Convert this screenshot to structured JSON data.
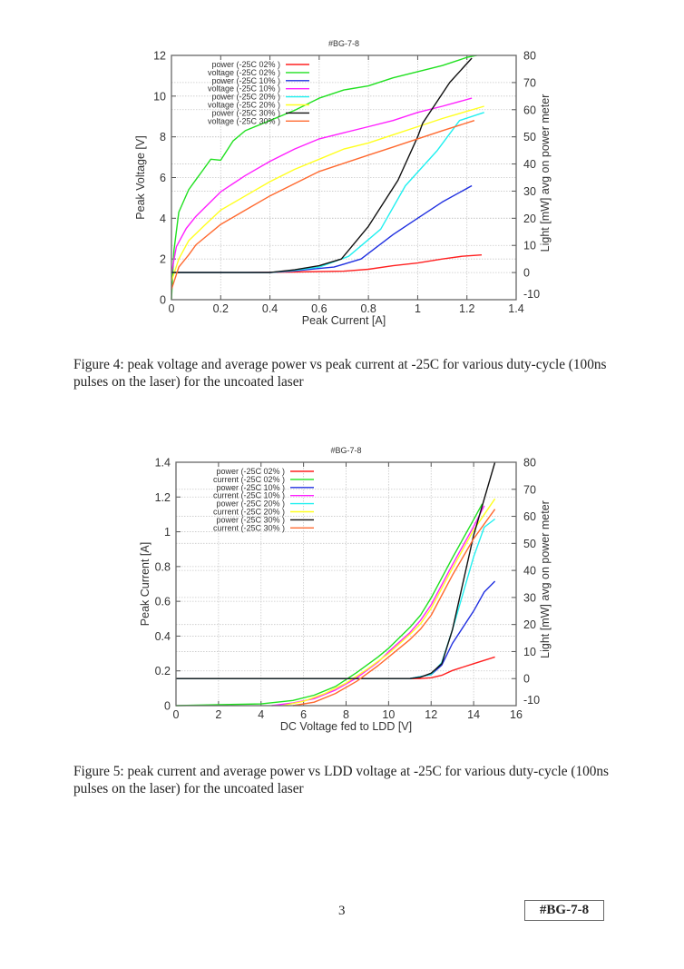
{
  "figures": [
    {
      "caption": "Figure 4: peak voltage and average power vs peak current at -25C for various duty-cycle (100ns pulses on the laser) for the uncoated laser"
    },
    {
      "caption": "Figure 5: peak current and average power vs LDD voltage at -25C for various duty-cycle (100ns pulses on the laser) for the uncoated laser"
    }
  ],
  "footer": {
    "page_number": "3",
    "tag": "#BG-7-8"
  },
  "chart_data": [
    {
      "type": "line",
      "title": "#BG-7-8",
      "xlabel": "Peak Current [A]",
      "ylabel": "Peak Voltage [V]",
      "y2label": "Light [mW] avg on power meter",
      "xlim": [
        0,
        1.4
      ],
      "ylim": [
        0,
        12
      ],
      "y2lim": [
        -10,
        80
      ],
      "xticks": [
        "0",
        "0.2",
        "0.4",
        "0.6",
        "0.8",
        "1",
        "1.2",
        "1.4"
      ],
      "xtick_values": [
        0,
        0.2,
        0.4,
        0.6,
        0.8,
        1,
        1.2,
        1.4
      ],
      "yticks": [
        "0",
        "2",
        "4",
        "6",
        "8",
        "10",
        "12"
      ],
      "ytick_values": [
        0,
        2,
        4,
        6,
        8,
        10,
        12
      ],
      "y2ticks": [
        "-10",
        "0",
        "10",
        "20",
        "30",
        "40",
        "50",
        "60",
        "70",
        "80"
      ],
      "y2tick_values": [
        -10,
        0,
        10,
        20,
        30,
        40,
        50,
        60,
        70,
        80
      ],
      "grid": true,
      "legend_position": "top-left",
      "series": [
        {
          "name": "power (-25C 02% )",
          "axis": "y2",
          "color": "#ff2020",
          "x": [
            0,
            0.3,
            0.5,
            0.7,
            0.8,
            0.9,
            1.0,
            1.1,
            1.18,
            1.26
          ],
          "y": [
            0,
            0,
            0.2,
            0.5,
            1.2,
            2.5,
            3.5,
            5,
            6,
            6.5
          ]
        },
        {
          "name": "voltage (-25C 02% )",
          "axis": "y",
          "color": "#20e020",
          "x": [
            0,
            0.01,
            0.03,
            0.07,
            0.1,
            0.13,
            0.16,
            0.2,
            0.25,
            0.3,
            0.4,
            0.5,
            0.6,
            0.7,
            0.8,
            0.9,
            1.0,
            1.1,
            1.2,
            1.24
          ],
          "y": [
            0,
            2.4,
            4.3,
            5.4,
            5.9,
            6.4,
            6.9,
            6.85,
            7.8,
            8.3,
            8.8,
            9.3,
            9.9,
            10.3,
            10.5,
            10.9,
            11.2,
            11.5,
            11.9,
            12.0
          ]
        },
        {
          "name": "power (-25C 10% )",
          "axis": "y2",
          "color": "#2030e0",
          "x": [
            0,
            0.4,
            0.5,
            0.6,
            0.66,
            0.77,
            0.9,
            1.0,
            1.1,
            1.22
          ],
          "y": [
            0,
            0,
            0.6,
            1.5,
            2,
            5,
            14,
            20,
            26,
            32
          ]
        },
        {
          "name": "voltage (-25C 10% )",
          "axis": "y",
          "color": "#ff20ff",
          "x": [
            0,
            0.02,
            0.06,
            0.1,
            0.2,
            0.3,
            0.4,
            0.5,
            0.6,
            0.7,
            0.8,
            0.9,
            1.0,
            1.1,
            1.22
          ],
          "y": [
            1.3,
            2.6,
            3.5,
            4.1,
            5.3,
            6.1,
            6.8,
            7.4,
            7.9,
            8.2,
            8.5,
            8.8,
            9.2,
            9.5,
            9.9
          ]
        },
        {
          "name": "power (-25C 20% )",
          "axis": "y2",
          "color": "#20f0f0",
          "x": [
            0,
            0.4,
            0.5,
            0.6,
            0.72,
            0.85,
            0.95,
            1.08,
            1.17,
            1.27
          ],
          "y": [
            0,
            0,
            0.8,
            2,
            6,
            16,
            32,
            45,
            56,
            59
          ]
        },
        {
          "name": "voltage (-25C 20% )",
          "axis": "y",
          "color": "#ffff20",
          "x": [
            0,
            0.03,
            0.07,
            0.13,
            0.2,
            0.3,
            0.4,
            0.5,
            0.6,
            0.7,
            0.8,
            0.9,
            1.0,
            1.1,
            1.27
          ],
          "y": [
            0.9,
            2.0,
            2.9,
            3.6,
            4.4,
            5.1,
            5.8,
            6.4,
            6.9,
            7.4,
            7.7,
            8.1,
            8.5,
            8.9,
            9.5
          ]
        },
        {
          "name": "power (-25C 30% )",
          "axis": "y2",
          "color": "#111111",
          "x": [
            0,
            0.4,
            0.5,
            0.6,
            0.69,
            0.8,
            0.92,
            1.0,
            1.02,
            1.13,
            1.22
          ],
          "y": [
            0,
            0,
            1,
            2.5,
            5,
            17,
            34,
            50,
            55,
            70,
            79
          ]
        },
        {
          "name": "voltage (-25C 30% )",
          "axis": "y",
          "color": "#ff6a30",
          "x": [
            0,
            0.03,
            0.07,
            0.1,
            0.2,
            0.3,
            0.4,
            0.5,
            0.6,
            0.7,
            0.8,
            0.9,
            1.0,
            1.1,
            1.23
          ],
          "y": [
            0.5,
            1.6,
            2.2,
            2.7,
            3.7,
            4.4,
            5.1,
            5.7,
            6.3,
            6.7,
            7.1,
            7.5,
            7.9,
            8.3,
            8.8
          ]
        }
      ]
    },
    {
      "type": "line",
      "title": "#BG-7-8",
      "xlabel": "DC Voltage fed to LDD [V]",
      "ylabel": "Peak Current [A]",
      "y2label": "Light [mW] avg on power meter",
      "xlim": [
        0,
        16
      ],
      "ylim": [
        0,
        1.4
      ],
      "y2lim": [
        -10,
        80
      ],
      "xticks": [
        "0",
        "2",
        "4",
        "6",
        "8",
        "10",
        "12",
        "14",
        "16"
      ],
      "xtick_values": [
        0,
        2,
        4,
        6,
        8,
        10,
        12,
        14,
        16
      ],
      "yticks": [
        "0",
        "0.2",
        "0.4",
        "0.6",
        "0.8",
        "1",
        "1.2",
        "1.4"
      ],
      "ytick_values": [
        0,
        0.2,
        0.4,
        0.6,
        0.8,
        1,
        1.2,
        1.4
      ],
      "y2ticks": [
        "-10",
        "0",
        "10",
        "20",
        "30",
        "40",
        "50",
        "60",
        "70",
        "80"
      ],
      "y2tick_values": [
        -10,
        0,
        10,
        20,
        30,
        40,
        50,
        60,
        70,
        80
      ],
      "grid": true,
      "legend_position": "top-left",
      "series": [
        {
          "name": "power (-25C 02% )",
          "axis": "y2",
          "color": "#ff2020",
          "x": [
            0,
            11.5,
            12,
            12.5,
            13,
            14,
            15
          ],
          "y": [
            0,
            0,
            0.3,
            1.2,
            3,
            5.5,
            8
          ]
        },
        {
          "name": "current (-25C 02% )",
          "axis": "y",
          "color": "#20e020",
          "x": [
            0,
            2,
            4,
            5.5,
            6.5,
            7.5,
            8.5,
            9.5,
            10,
            11,
            11.5,
            12,
            13,
            14,
            14.4
          ],
          "y": [
            0,
            0.005,
            0.01,
            0.03,
            0.06,
            0.11,
            0.19,
            0.28,
            0.33,
            0.45,
            0.52,
            0.62,
            0.85,
            1.07,
            1.16
          ]
        },
        {
          "name": "power (-25C 10% )",
          "axis": "y2",
          "color": "#2030e0",
          "x": [
            0,
            11,
            12,
            12.5,
            13,
            14,
            14.5,
            15
          ],
          "y": [
            0,
            0,
            1.5,
            5,
            13,
            25,
            32,
            36
          ]
        },
        {
          "name": "current (-25C 10% )",
          "axis": "y",
          "color": "#ff20ff",
          "x": [
            4.5,
            5.5,
            6.5,
            7.5,
            8.5,
            9.5,
            10,
            11,
            11.5,
            12,
            13,
            14,
            14.5
          ],
          "y": [
            0,
            0.015,
            0.04,
            0.09,
            0.16,
            0.25,
            0.31,
            0.42,
            0.49,
            0.58,
            0.81,
            1.03,
            1.15
          ]
        },
        {
          "name": "power (-25C 20% )",
          "axis": "y2",
          "color": "#20f0f0",
          "x": [
            0,
            11,
            12,
            12.5,
            13,
            14,
            14.5,
            15
          ],
          "y": [
            0,
            0,
            1.5,
            6,
            18,
            45,
            56,
            59
          ]
        },
        {
          "name": "current (-25C 20% )",
          "axis": "y",
          "color": "#ffff20",
          "x": [
            5,
            6,
            7,
            8,
            9,
            10,
            11,
            11.5,
            12,
            13,
            14,
            15
          ],
          "y": [
            0,
            0.025,
            0.07,
            0.13,
            0.21,
            0.3,
            0.41,
            0.47,
            0.56,
            0.79,
            1.01,
            1.19
          ]
        },
        {
          "name": "power (-25C 30% )",
          "axis": "y2",
          "color": "#111111",
          "x": [
            0,
            11,
            11.5,
            12,
            12.5,
            13,
            14,
            15
          ],
          "y": [
            0,
            0,
            0.5,
            2,
            5.5,
            18,
            53,
            80
          ]
        },
        {
          "name": "current (-25C 30% )",
          "axis": "y",
          "color": "#ff6a30",
          "x": [
            5.5,
            6.5,
            7.5,
            8.5,
            9.5,
            10,
            11,
            11.5,
            12,
            13,
            14,
            15
          ],
          "y": [
            0,
            0.02,
            0.07,
            0.14,
            0.23,
            0.28,
            0.38,
            0.44,
            0.52,
            0.75,
            0.96,
            1.13
          ]
        }
      ]
    }
  ]
}
